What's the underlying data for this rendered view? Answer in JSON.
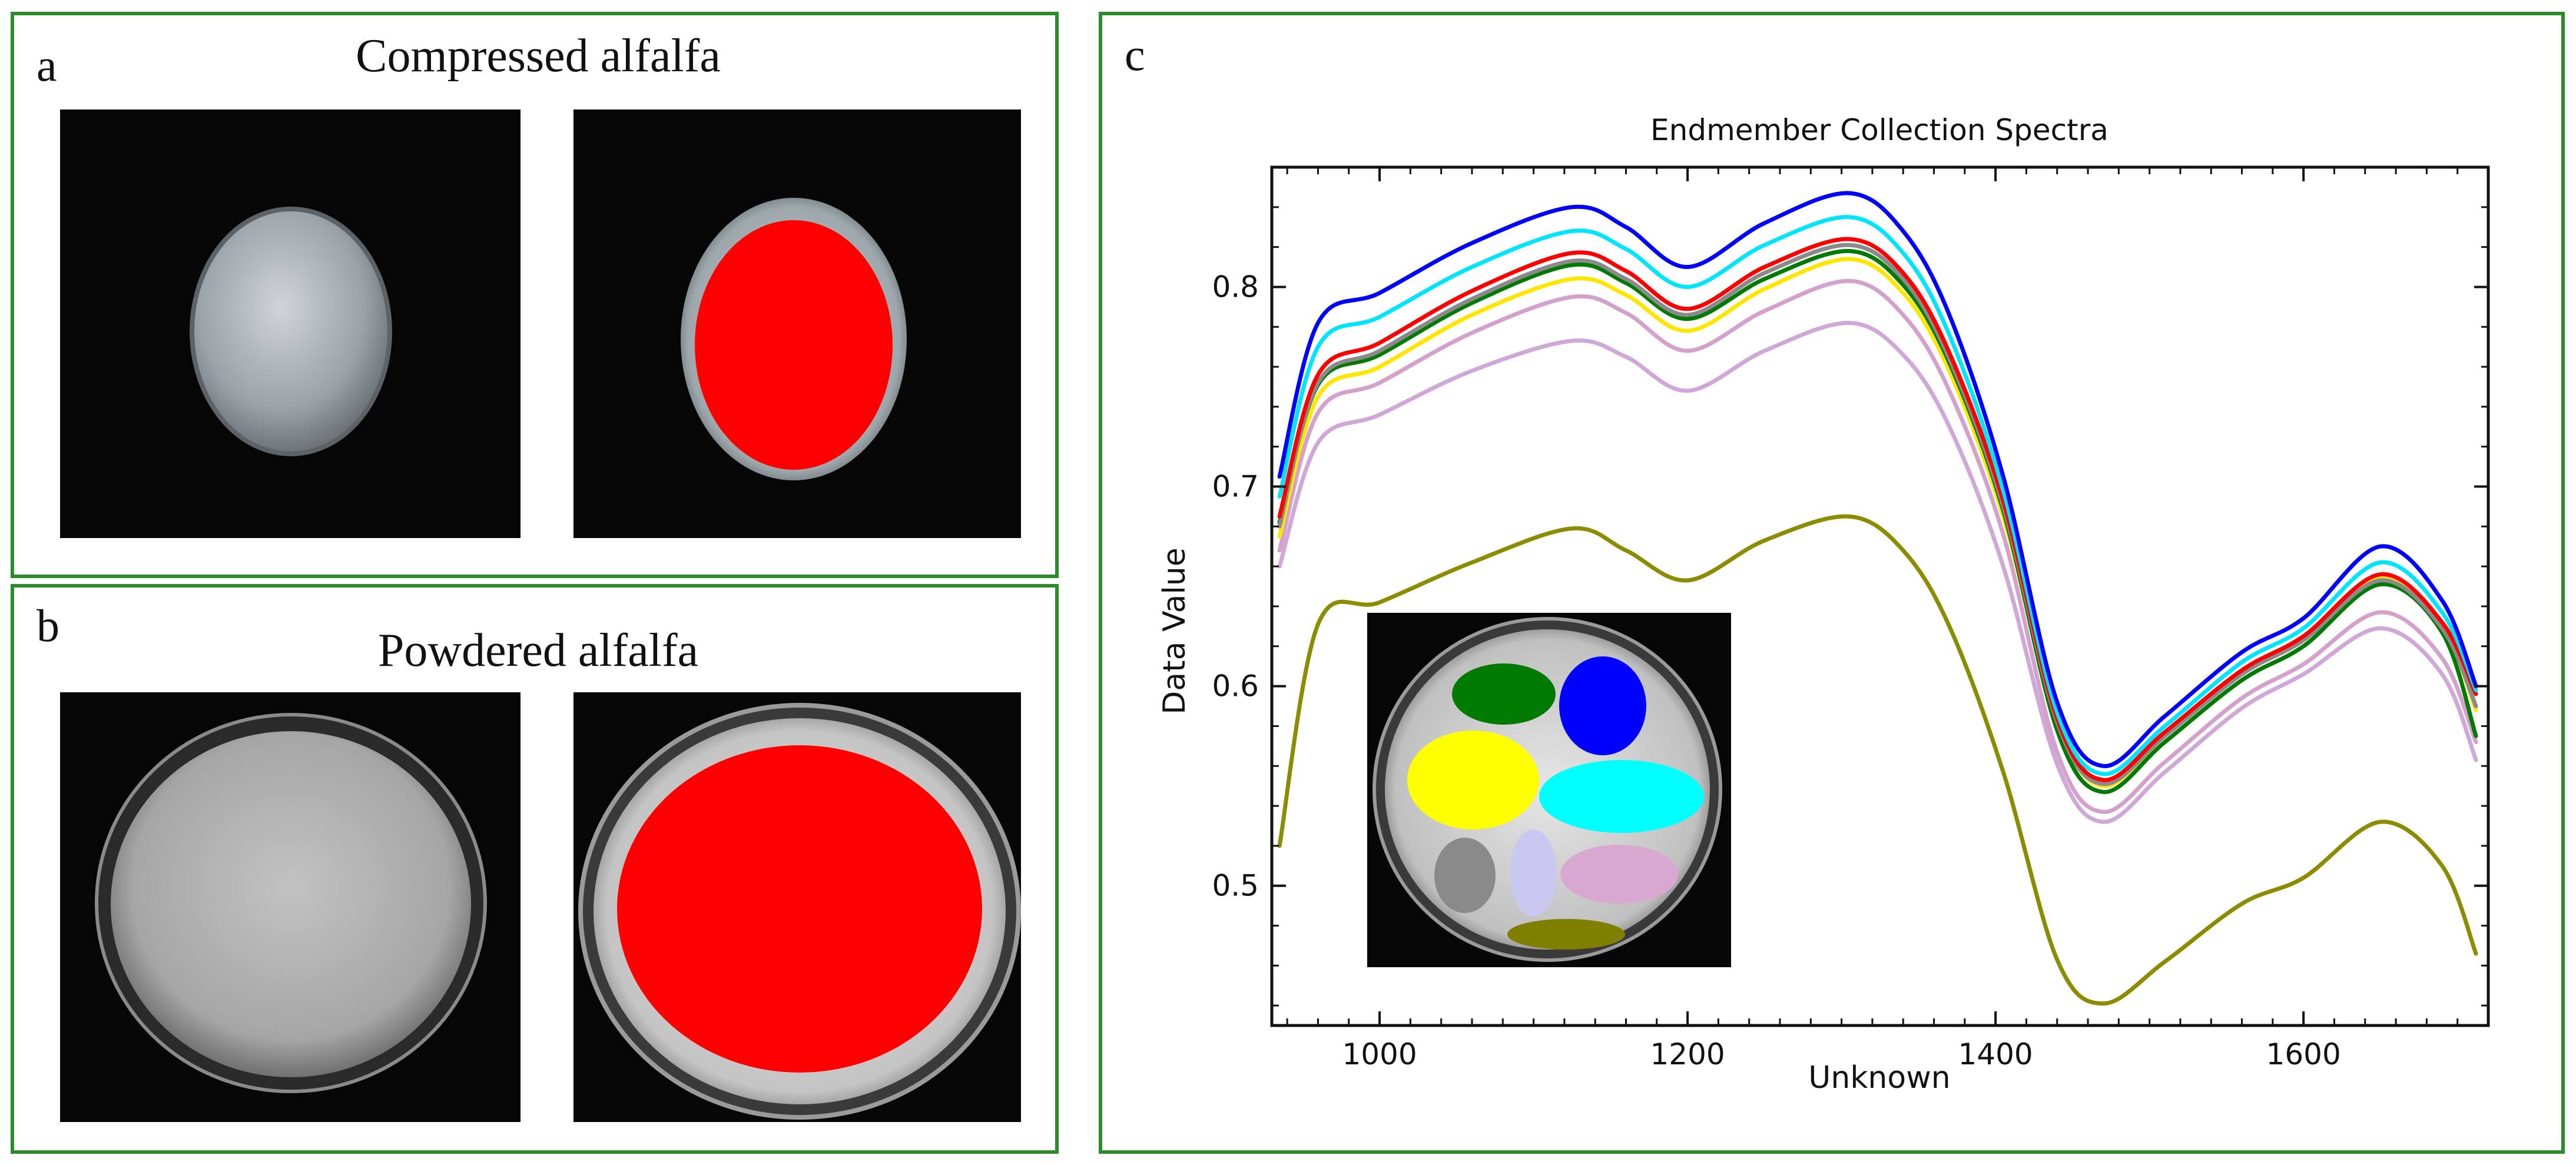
{
  "panels": {
    "a": {
      "letter": "a",
      "title": "Compressed alfalfa"
    },
    "b": {
      "letter": "b",
      "title": "Powdered alfalfa"
    },
    "c": {
      "letter": "c"
    }
  },
  "colors": {
    "frame": "#2f8a2f",
    "roi_red": "#ff0000",
    "photo_bg": "#050505"
  },
  "inset_rois": [
    {
      "name": "green",
      "color": "#007a00"
    },
    {
      "name": "blue",
      "color": "#0000ff"
    },
    {
      "name": "yellow",
      "color": "#ffff00"
    },
    {
      "name": "cyan",
      "color": "#00ffff"
    },
    {
      "name": "gray",
      "color": "#8a8a8a"
    },
    {
      "name": "lavender",
      "color": "#c8c8f0"
    },
    {
      "name": "pink",
      "color": "#d8a8d0"
    },
    {
      "name": "olive",
      "color": "#808000"
    }
  ],
  "chart_data": {
    "type": "line",
    "title": "Endmember Collection Spectra",
    "xlabel": "Unknown",
    "ylabel": "Data Value",
    "xlim": [
      930,
      1720
    ],
    "ylim": [
      0.43,
      0.86
    ],
    "xticks": [
      1000,
      1200,
      1400,
      1600
    ],
    "yticks": [
      0.5,
      0.6,
      0.7,
      0.8
    ],
    "xtick_labels": [
      "1000",
      "1200",
      "1400",
      "1600"
    ],
    "ytick_labels": [
      "0.5",
      "0.6",
      "0.7",
      "0.8"
    ],
    "x": [
      935,
      960,
      1000,
      1060,
      1125,
      1160,
      1200,
      1250,
      1305,
      1340,
      1370,
      1405,
      1440,
      1470,
      1510,
      1560,
      1600,
      1650,
      1690,
      1712
    ],
    "series": [
      {
        "name": "blue",
        "color": "#0000ff",
        "values": [
          0.705,
          0.782,
          0.797,
          0.822,
          0.84,
          0.83,
          0.81,
          0.832,
          0.847,
          0.828,
          0.786,
          0.705,
          0.592,
          0.56,
          0.585,
          0.617,
          0.634,
          0.67,
          0.643,
          0.6
        ]
      },
      {
        "name": "cyan",
        "color": "#00e5ff",
        "values": [
          0.695,
          0.77,
          0.785,
          0.81,
          0.828,
          0.819,
          0.8,
          0.821,
          0.835,
          0.817,
          0.776,
          0.698,
          0.587,
          0.556,
          0.58,
          0.612,
          0.629,
          0.662,
          0.637,
          0.598
        ]
      },
      {
        "name": "red",
        "color": "#ff0000",
        "values": [
          0.685,
          0.756,
          0.772,
          0.798,
          0.817,
          0.808,
          0.789,
          0.81,
          0.824,
          0.807,
          0.767,
          0.693,
          0.584,
          0.553,
          0.577,
          0.608,
          0.625,
          0.656,
          0.632,
          0.596
        ]
      },
      {
        "name": "gray",
        "color": "#8a8a8a",
        "values": [
          0.68,
          0.752,
          0.768,
          0.794,
          0.813,
          0.804,
          0.786,
          0.807,
          0.821,
          0.804,
          0.764,
          0.69,
          0.582,
          0.551,
          0.575,
          0.606,
          0.623,
          0.653,
          0.629,
          0.59
        ]
      },
      {
        "name": "green",
        "color": "#007a00",
        "values": [
          0.682,
          0.751,
          0.766,
          0.792,
          0.811,
          0.802,
          0.784,
          0.804,
          0.818,
          0.801,
          0.762,
          0.688,
          0.578,
          0.547,
          0.572,
          0.603,
          0.62,
          0.651,
          0.627,
          0.575
        ]
      },
      {
        "name": "yellow",
        "color": "#ffe600",
        "values": [
          0.675,
          0.745,
          0.76,
          0.786,
          0.804,
          0.796,
          0.778,
          0.799,
          0.814,
          0.797,
          0.758,
          0.685,
          0.582,
          0.55,
          0.575,
          0.606,
          0.624,
          0.654,
          0.63,
          0.588
        ]
      },
      {
        "name": "pink",
        "color": "#d4a0cc",
        "values": [
          0.668,
          0.737,
          0.752,
          0.777,
          0.795,
          0.787,
          0.768,
          0.788,
          0.803,
          0.786,
          0.748,
          0.676,
          0.567,
          0.537,
          0.562,
          0.594,
          0.611,
          0.637,
          0.614,
          0.572
        ]
      },
      {
        "name": "lavender",
        "color": "#d0a8d8",
        "values": [
          0.66,
          0.722,
          0.736,
          0.758,
          0.773,
          0.765,
          0.748,
          0.768,
          0.782,
          0.766,
          0.73,
          0.66,
          0.561,
          0.532,
          0.557,
          0.589,
          0.606,
          0.629,
          0.606,
          0.563
        ]
      },
      {
        "name": "olive",
        "color": "#8c8c00",
        "values": [
          0.52,
          0.631,
          0.642,
          0.662,
          0.679,
          0.668,
          0.653,
          0.673,
          0.685,
          0.668,
          0.63,
          0.557,
          0.463,
          0.441,
          0.462,
          0.491,
          0.504,
          0.532,
          0.51,
          0.466
        ]
      }
    ]
  }
}
